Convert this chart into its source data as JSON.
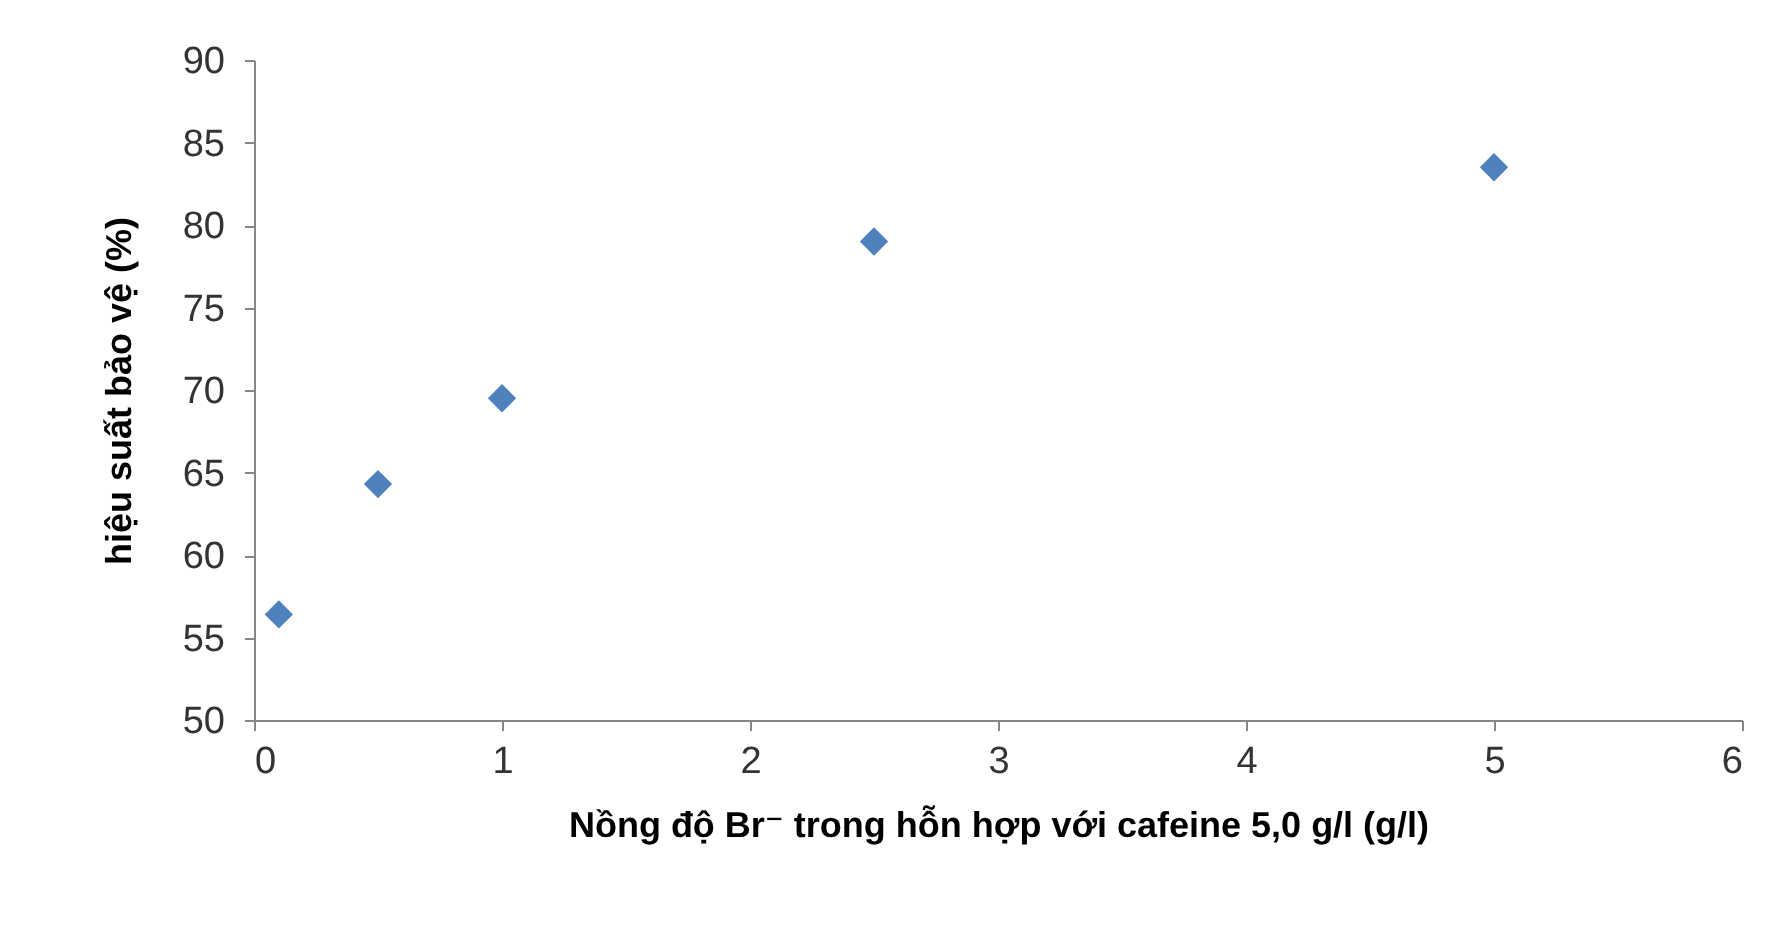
{
  "chart_data": {
    "type": "scatter",
    "xlabel": "Nồng độ Br⁻ trong hỗn hợp với cafeine 5,0 g/l (g/l)",
    "ylabel": "hiệu suất bảo vệ (%)",
    "x": [
      0.1,
      0.5,
      1,
      2.5,
      5
    ],
    "series": [
      {
        "color": "#4f81bd",
        "values": [
          56.4,
          64.3,
          69.5,
          79,
          83.5
        ]
      }
    ],
    "xlim": [
      0,
      6
    ],
    "xticks": [
      0,
      1,
      2,
      3,
      4,
      5,
      6
    ],
    "ylim": [
      50,
      90
    ],
    "yticks": [
      50,
      55,
      60,
      65,
      70,
      75,
      80,
      85,
      90
    ],
    "marker": "diamond"
  }
}
